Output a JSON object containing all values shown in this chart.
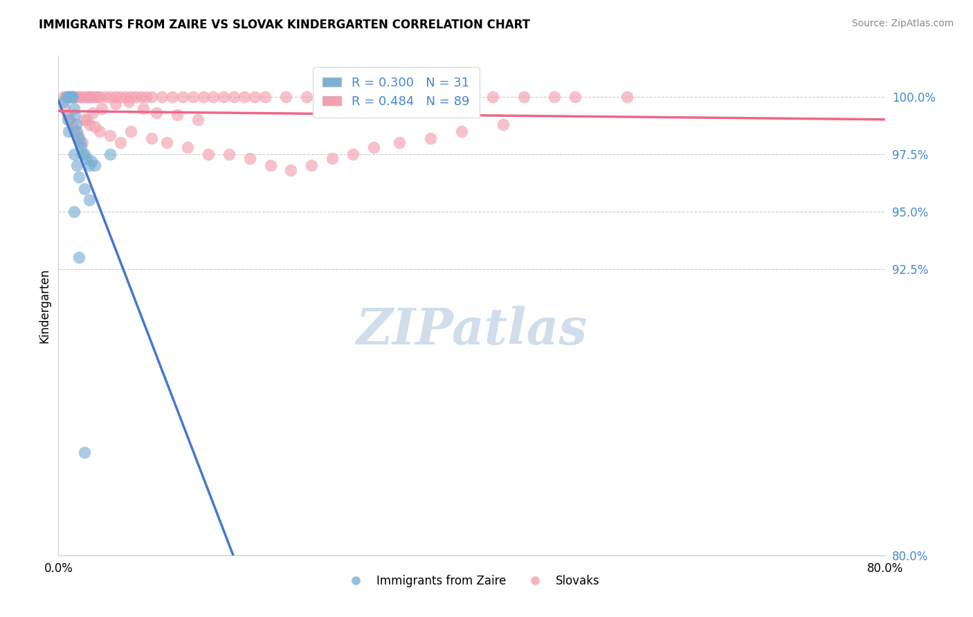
{
  "title": "IMMIGRANTS FROM ZAIRE VS SLOVAK KINDERGARTEN CORRELATION CHART",
  "source": "Source: ZipAtlas.com",
  "ylabel": "Kindergarten",
  "yticks": [
    80.0,
    92.5,
    95.0,
    97.5,
    100.0
  ],
  "ytick_labels": [
    "80.0%",
    "92.5%",
    "95.0%",
    "97.5%",
    "100.0%"
  ],
  "xlim": [
    0.0,
    80.0
  ],
  "ylim": [
    80.0,
    101.8
  ],
  "blue_color": "#7BAFD4",
  "pink_color": "#F4A0B0",
  "trend_blue": "#4477CC",
  "trend_pink": "#EE6688",
  "legend_label_blue": "R = 0.300   N = 31",
  "legend_label_pink": "R = 0.484   N = 89",
  "blue_x": [
    0.5,
    0.8,
    1.0,
    1.1,
    1.2,
    1.3,
    1.4,
    1.5,
    1.6,
    1.7,
    1.8,
    2.0,
    2.1,
    2.2,
    2.3,
    2.5,
    2.7,
    3.0,
    3.2,
    0.9,
    1.0,
    1.5,
    1.8,
    2.0,
    2.5,
    3.0,
    3.5,
    5.0,
    1.5,
    2.0,
    2.5
  ],
  "blue_y": [
    99.8,
    100.0,
    100.0,
    100.0,
    100.0,
    100.0,
    100.0,
    99.5,
    99.2,
    98.8,
    98.5,
    98.2,
    98.0,
    97.8,
    97.5,
    97.5,
    97.3,
    97.0,
    97.2,
    99.0,
    98.5,
    97.5,
    97.0,
    96.5,
    96.0,
    95.5,
    97.0,
    97.5,
    95.0,
    93.0,
    84.5
  ],
  "pink_x": [
    0.5,
    0.8,
    1.0,
    1.2,
    1.5,
    1.7,
    2.0,
    2.2,
    2.5,
    2.8,
    3.0,
    3.2,
    3.5,
    3.8,
    4.0,
    4.5,
    5.0,
    5.5,
    6.0,
    6.5,
    7.0,
    7.5,
    8.0,
    8.5,
    9.0,
    10.0,
    11.0,
    12.0,
    13.0,
    14.0,
    15.0,
    16.0,
    17.0,
    18.0,
    19.0,
    20.0,
    22.0,
    24.0,
    26.0,
    28.0,
    30.0,
    32.0,
    35.0,
    38.0,
    40.0,
    42.0,
    45.0,
    48.0,
    50.0,
    55.0,
    0.6,
    0.9,
    1.1,
    1.4,
    1.6,
    1.9,
    2.3,
    2.7,
    3.3,
    4.2,
    5.5,
    6.8,
    8.2,
    9.5,
    11.5,
    13.5,
    3.0,
    4.0,
    5.0,
    6.0,
    2.5,
    3.5,
    7.0,
    9.0,
    10.5,
    12.5,
    14.5,
    16.5,
    18.5,
    20.5,
    22.5,
    24.5,
    26.5,
    28.5,
    30.5,
    33.0,
    36.0,
    39.0,
    43.0
  ],
  "pink_y": [
    100.0,
    100.0,
    100.0,
    100.0,
    100.0,
    100.0,
    100.0,
    100.0,
    100.0,
    100.0,
    100.0,
    100.0,
    100.0,
    100.0,
    100.0,
    100.0,
    100.0,
    100.0,
    100.0,
    100.0,
    100.0,
    100.0,
    100.0,
    100.0,
    100.0,
    100.0,
    100.0,
    100.0,
    100.0,
    100.0,
    100.0,
    100.0,
    100.0,
    100.0,
    100.0,
    100.0,
    100.0,
    100.0,
    100.0,
    100.0,
    100.0,
    100.0,
    100.0,
    100.0,
    100.0,
    100.0,
    100.0,
    100.0,
    100.0,
    100.0,
    99.5,
    99.2,
    99.0,
    98.8,
    98.5,
    98.3,
    98.0,
    99.0,
    99.3,
    99.5,
    99.7,
    99.8,
    99.5,
    99.3,
    99.2,
    99.0,
    98.8,
    98.5,
    98.3,
    98.0,
    99.0,
    98.7,
    98.5,
    98.2,
    98.0,
    97.8,
    97.5,
    97.5,
    97.3,
    97.0,
    96.8,
    97.0,
    97.3,
    97.5,
    97.8,
    98.0,
    98.2,
    98.5,
    98.8
  ],
  "watermark_text": "ZIPatlas",
  "watermark_color": "#C8D8E8"
}
